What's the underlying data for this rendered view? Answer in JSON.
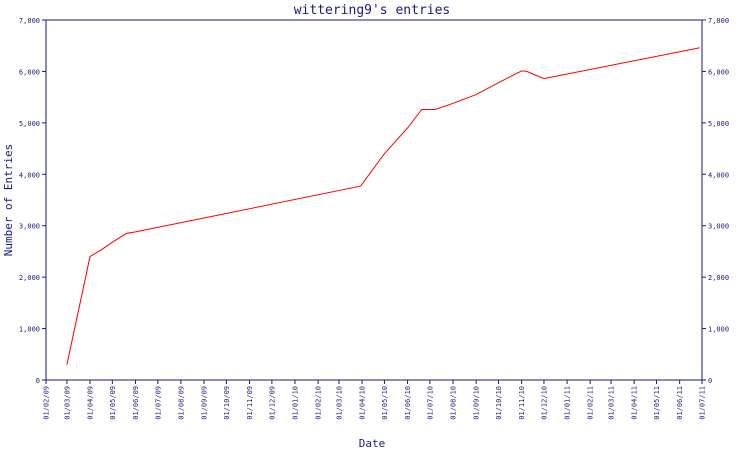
{
  "chart_data": {
    "type": "line",
    "title": "wittering9's entries",
    "xlabel": "Date",
    "ylabel": "Number of Entries",
    "x_ticks": [
      "01/02/09",
      "01/03/09",
      "01/04/09",
      "01/05/09",
      "01/06/09",
      "01/07/09",
      "01/08/09",
      "01/09/09",
      "01/10/09",
      "01/11/09",
      "01/12/09",
      "01/01/10",
      "01/02/10",
      "01/03/10",
      "01/04/10",
      "01/05/10",
      "01/06/10",
      "01/07/10",
      "01/08/10",
      "01/09/10",
      "01/10/10",
      "01/11/10",
      "01/12/10",
      "01/01/11",
      "01/02/11",
      "01/03/11",
      "01/04/11",
      "01/05/11",
      "01/06/11",
      "01/07/11"
    ],
    "y_ticks": [
      0,
      1000,
      2000,
      3000,
      4000,
      5000,
      6000,
      7000
    ],
    "y_tick_labels": [
      "0",
      "1,000",
      "2,000",
      "3,000",
      "4,000",
      "5,000",
      "6,000",
      "7,000"
    ],
    "ylim": [
      0,
      7000
    ],
    "xlim": [
      "2009-02-01",
      "2011-07-01"
    ],
    "grid": false,
    "line_color": "#ff0000",
    "axis_color": "#1a1a7a",
    "series": [
      {
        "x": [
          "2009-03-01",
          "2009-04-01",
          "2009-04-15",
          "2009-05-01",
          "2009-05-20",
          "2009-06-01",
          "2010-03-30",
          "2010-05-01",
          "2010-06-01",
          "2010-06-20",
          "2010-07-08",
          "2010-08-01",
          "2010-09-01",
          "2010-10-01",
          "2010-11-01",
          "2010-11-08",
          "2010-12-01",
          "2011-06-28"
        ],
        "values": [
          300,
          2400,
          2520,
          2680,
          2850,
          2880,
          3770,
          4400,
          4900,
          5260,
          5260,
          5380,
          5550,
          5780,
          6010,
          6000,
          5860,
          6460
        ]
      }
    ]
  }
}
